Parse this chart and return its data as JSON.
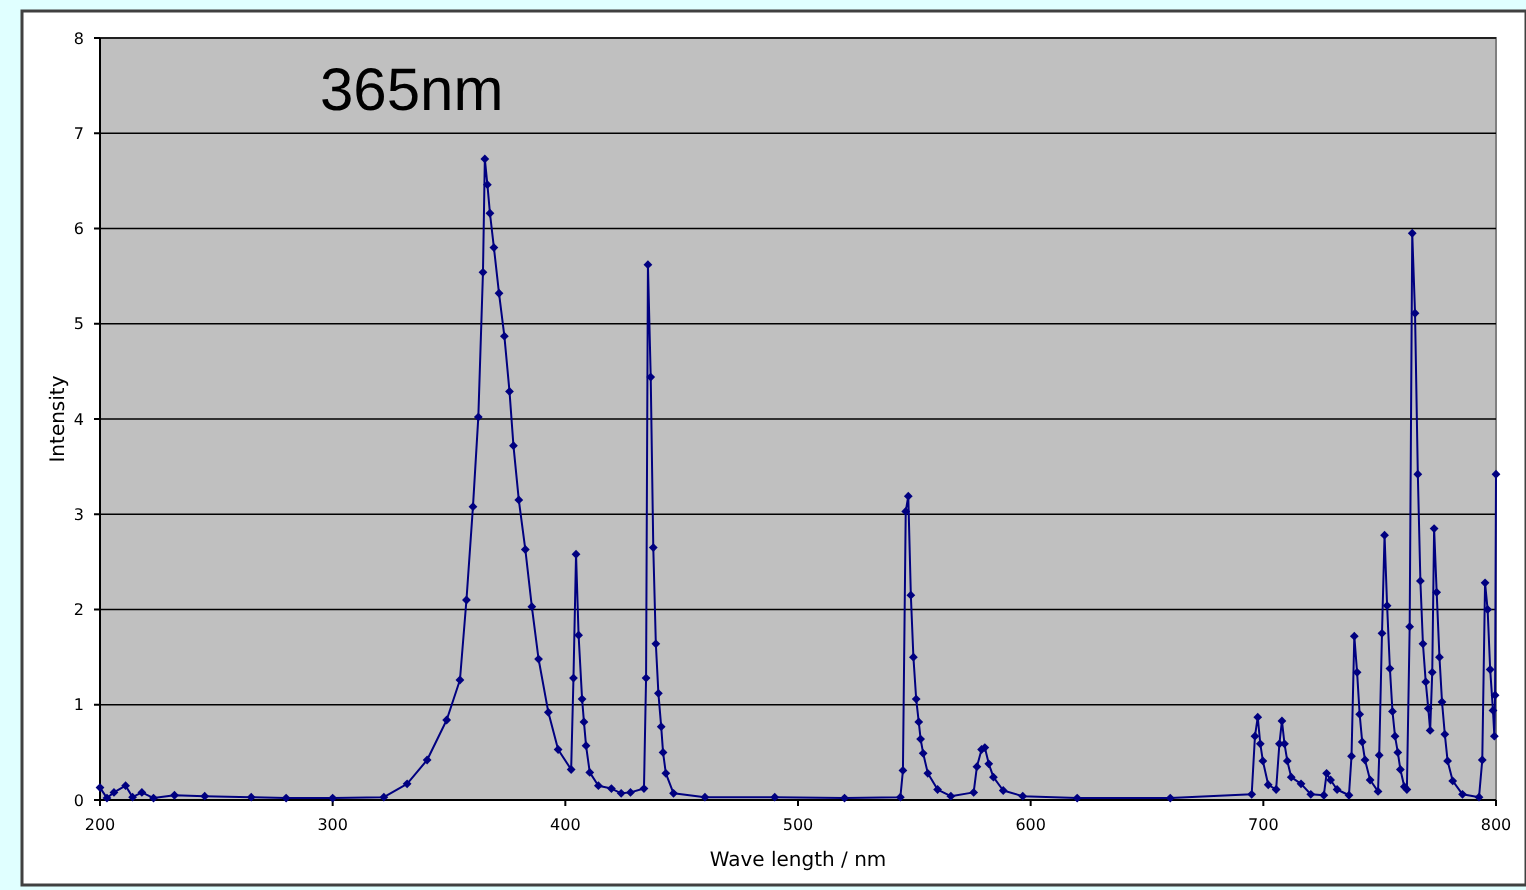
{
  "chart_data": {
    "type": "line",
    "title": "365nm",
    "xlabel": "Wave length / nm",
    "ylabel": "Intensity",
    "xlim": [
      200,
      800
    ],
    "xticks": [
      200,
      300,
      400,
      500,
      600,
      700,
      800
    ],
    "ylim": [
      0,
      8
    ],
    "yticks": [
      0,
      1,
      2,
      3,
      4,
      5,
      6,
      7,
      8
    ],
    "grid": "y",
    "marker": "diamond",
    "line_style": "solid",
    "series": [
      {
        "color": "#000080",
        "x": [
          200,
          203,
          206,
          211,
          214,
          218,
          223,
          232,
          245,
          265,
          280,
          300,
          322,
          332,
          340.6,
          349,
          354.7,
          357.5,
          360.3,
          362.6,
          364.6,
          365.4,
          366.5,
          367.6,
          369.3,
          371.5,
          373.8,
          376,
          377.7,
          380,
          382.8,
          385.6,
          388.5,
          392.7,
          396.9,
          402.5,
          403.5,
          404.6,
          405.7,
          407.2,
          408,
          408.9,
          410.5,
          414.2,
          419.8,
          424,
          428,
          433.8,
          434.7,
          435.5,
          436.7,
          437.8,
          438.9,
          440,
          441.2,
          442,
          443.2,
          446.5,
          460,
          490,
          520,
          544,
          545.1,
          546.3,
          547.4,
          548.5,
          549.6,
          550.8,
          551.9,
          552.7,
          553.8,
          555.8,
          560,
          565.7,
          575.5,
          576.9,
          578.9,
          580.3,
          582,
          584,
          588.2,
          596.6,
          620,
          660,
          695,
          696.4,
          697.6,
          698.7,
          699.8,
          702.1,
          705.5,
          706.9,
          708,
          709.1,
          710.3,
          712,
          716.2,
          720.4,
          726,
          727.2,
          728.9,
          731.7,
          736.8,
          737.9,
          739.1,
          740.3,
          741.4,
          742.5,
          743.7,
          745.9,
          749.3,
          749.8,
          751,
          752.1,
          753.2,
          754.4,
          755.5,
          756.6,
          757.8,
          758.9,
          760.6,
          761.7,
          762.9,
          764,
          765.2,
          766.4,
          767.5,
          768.6,
          769.8,
          770.9,
          771.7,
          772.6,
          773.4,
          774.5,
          775.7,
          776.8,
          778,
          779.2,
          781.4,
          785.6,
          792.7,
          794.1,
          795.3,
          796.4,
          797.5,
          798.7,
          799.3,
          799.6,
          800
        ],
        "values": [
          0.13,
          0.02,
          0.08,
          0.15,
          0.03,
          0.08,
          0.02,
          0.05,
          0.04,
          0.03,
          0.02,
          0.02,
          0.03,
          0.17,
          0.42,
          0.84,
          1.26,
          2.1,
          3.08,
          4.02,
          5.54,
          6.73,
          6.46,
          6.16,
          5.8,
          5.32,
          4.87,
          4.29,
          3.72,
          3.15,
          2.63,
          2.03,
          1.48,
          0.92,
          0.53,
          0.32,
          1.28,
          2.58,
          1.73,
          1.06,
          0.82,
          0.57,
          0.29,
          0.15,
          0.12,
          0.07,
          0.08,
          0.12,
          1.28,
          5.62,
          4.44,
          2.65,
          1.64,
          1.12,
          0.77,
          0.5,
          0.28,
          0.07,
          0.03,
          0.03,
          0.02,
          0.03,
          0.31,
          3.03,
          3.19,
          2.15,
          1.5,
          1.06,
          0.82,
          0.64,
          0.49,
          0.28,
          0.11,
          0.04,
          0.08,
          0.35,
          0.53,
          0.55,
          0.38,
          0.24,
          0.1,
          0.04,
          0.02,
          0.02,
          0.06,
          0.67,
          0.87,
          0.59,
          0.41,
          0.16,
          0.11,
          0.59,
          0.83,
          0.59,
          0.41,
          0.24,
          0.17,
          0.06,
          0.05,
          0.28,
          0.21,
          0.11,
          0.05,
          0.46,
          1.72,
          1.34,
          0.9,
          0.61,
          0.42,
          0.21,
          0.09,
          0.47,
          1.75,
          2.78,
          2.04,
          1.38,
          0.93,
          0.67,
          0.5,
          0.32,
          0.14,
          0.11,
          1.82,
          5.95,
          5.11,
          3.42,
          2.3,
          1.64,
          1.24,
          0.96,
          0.73,
          1.34,
          2.85,
          2.18,
          1.5,
          1.03,
          0.69,
          0.41,
          0.2,
          0.06,
          0.03,
          0.42,
          2.28,
          2.0,
          1.37,
          0.94,
          0.67,
          1.1,
          3.42
        ]
      }
    ]
  }
}
